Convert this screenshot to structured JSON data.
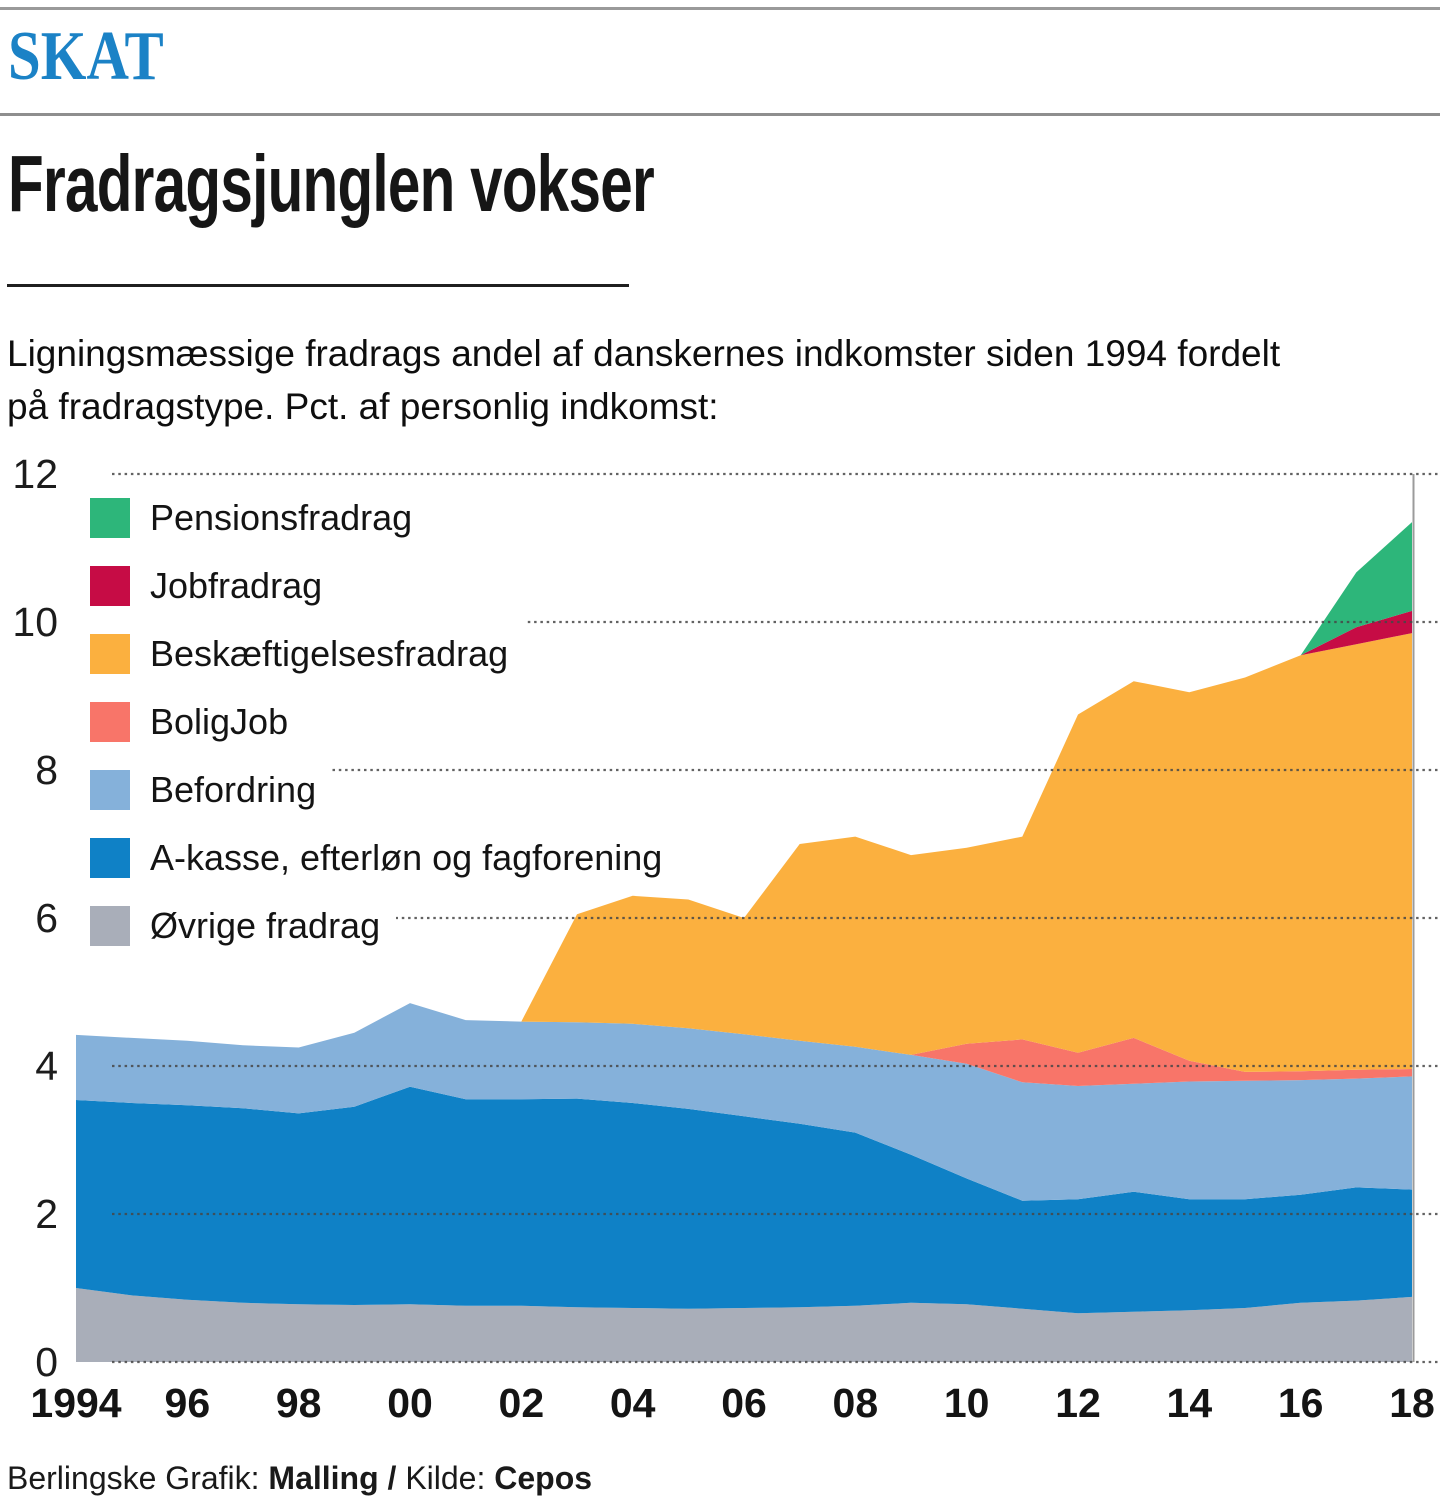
{
  "header": {
    "kicker": "SKAT",
    "kicker_color": "#1b82c6",
    "title": "Fradragsjunglen vokser",
    "subtitle_line1": "Ligningsmæssige fradrags andel af danskernes indkomster siden 1994 fordelt",
    "subtitle_line2": "på fradragstype. Pct. af personlig indkomst:"
  },
  "chart_data": {
    "type": "area",
    "stacked": true,
    "title": "Fradragsjunglen vokser",
    "subtitle": "Ligningsmæssige fradrags andel af danskernes indkomster siden 1994 fordelt på fradragstype. Pct. af personlig indkomst",
    "ylabel": "Pct. af personlig indkomst",
    "xlabel": "",
    "ylim": [
      0,
      12
    ],
    "yticks": [
      0,
      2,
      4,
      6,
      8,
      10,
      12
    ],
    "grid": true,
    "legend_position": "top-left",
    "x_years": [
      1994,
      1995,
      1996,
      1997,
      1998,
      1999,
      2000,
      2001,
      2002,
      2003,
      2004,
      2005,
      2006,
      2007,
      2008,
      2009,
      2010,
      2011,
      2012,
      2013,
      2014,
      2015,
      2016,
      2017,
      2018
    ],
    "xticks": {
      "years": [
        1994,
        1996,
        1998,
        2000,
        2002,
        2004,
        2006,
        2008,
        2010,
        2012,
        2014,
        2016,
        2018
      ],
      "labels": [
        "1994",
        "96",
        "98",
        "00",
        "02",
        "04",
        "06",
        "08",
        "10",
        "12",
        "14",
        "16",
        "18"
      ]
    },
    "series": [
      {
        "name": "Øvrige fradrag",
        "color": "#a9aeb9",
        "values": [
          1.0,
          0.9,
          0.84,
          0.8,
          0.78,
          0.77,
          0.78,
          0.76,
          0.76,
          0.74,
          0.73,
          0.72,
          0.73,
          0.74,
          0.76,
          0.8,
          0.78,
          0.72,
          0.66,
          0.68,
          0.7,
          0.73,
          0.8,
          0.83,
          0.88
        ]
      },
      {
        "name": "A-kasse, efterløn og fagforening",
        "color": "#0f81c6",
        "values": [
          2.54,
          2.6,
          2.63,
          2.63,
          2.58,
          2.68,
          2.94,
          2.79,
          2.79,
          2.82,
          2.77,
          2.7,
          2.59,
          2.48,
          2.34,
          2.0,
          1.7,
          1.46,
          1.54,
          1.62,
          1.5,
          1.47,
          1.46,
          1.53,
          1.45
        ]
      },
      {
        "name": "Befordring",
        "color": "#85b1da",
        "values": [
          0.88,
          0.88,
          0.87,
          0.85,
          0.89,
          1.0,
          1.13,
          1.07,
          1.05,
          1.03,
          1.07,
          1.09,
          1.11,
          1.12,
          1.16,
          1.35,
          1.55,
          1.6,
          1.53,
          1.46,
          1.59,
          1.6,
          1.55,
          1.47,
          1.53
        ]
      },
      {
        "name": "BoligJob",
        "color": "#f87569",
        "values": [
          0,
          0,
          0,
          0,
          0,
          0,
          0,
          0,
          0,
          0,
          0,
          0,
          0,
          0,
          0,
          0,
          0.27,
          0.58,
          0.45,
          0.62,
          0.28,
          0.12,
          0.12,
          0.12,
          0.1
        ]
      },
      {
        "name": "Beskæftigelsesfradrag",
        "color": "#fbb03f",
        "values": [
          0,
          0,
          0,
          0,
          0,
          0,
          0,
          0,
          0,
          1.46,
          1.73,
          1.74,
          1.57,
          2.66,
          2.84,
          2.7,
          2.65,
          2.74,
          4.57,
          4.82,
          4.98,
          5.33,
          5.62,
          5.75,
          5.89
        ]
      },
      {
        "name": "Jobfradrag",
        "color": "#c60c45",
        "values": [
          0,
          0,
          0,
          0,
          0,
          0,
          0,
          0,
          0,
          0,
          0,
          0,
          0,
          0,
          0,
          0,
          0,
          0,
          0,
          0,
          0,
          0,
          0,
          0.23,
          0.3
        ]
      },
      {
        "name": "Pensionsfradrag",
        "color": "#2db67a",
        "values": [
          0,
          0,
          0,
          0,
          0,
          0,
          0,
          0,
          0,
          0,
          0,
          0,
          0,
          0,
          0,
          0,
          0,
          0,
          0,
          0,
          0,
          0,
          0,
          0.74,
          1.2
        ]
      }
    ]
  },
  "footer": {
    "credit_prefix": "Berlingske Grafik: ",
    "credit_name": "Malling / ",
    "source_prefix": "Kilde: ",
    "source_name": "Cepos"
  }
}
